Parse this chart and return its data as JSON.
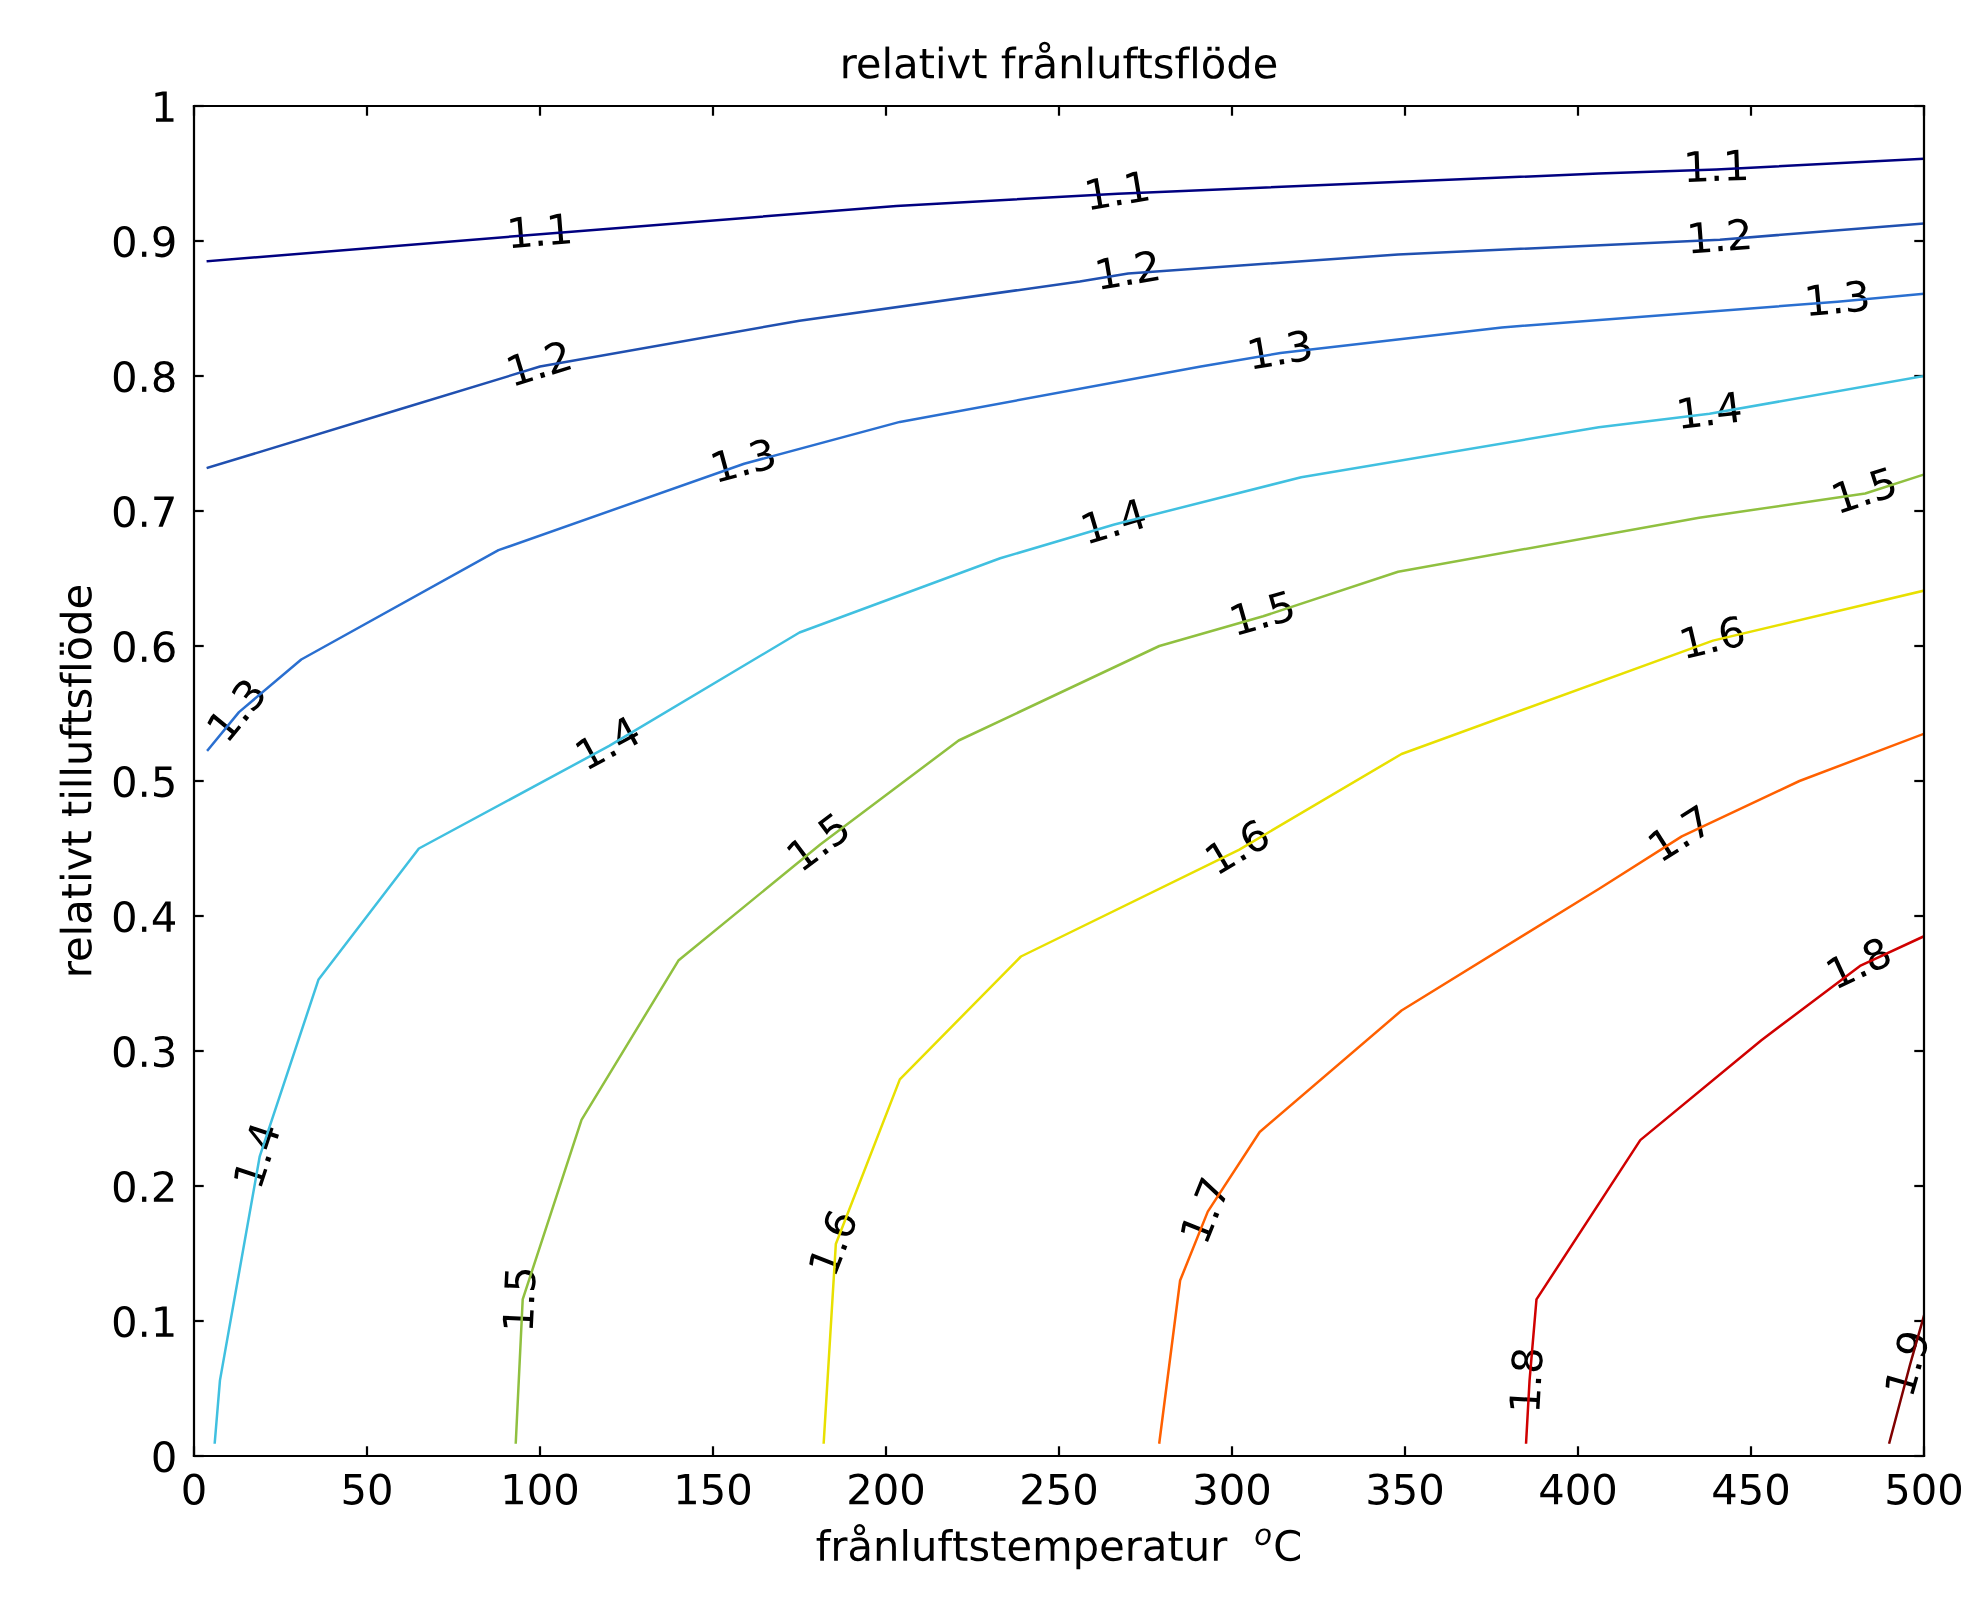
{
  "chart_data": {
    "type": "line",
    "title": "relativt frånluftsflöde",
    "xlabel": "frånluftstemperatur  $^{o}$C",
    "ylabel": "relativt tilluftsflöde",
    "xlim": [
      0,
      500
    ],
    "xticks": [
      0,
      50,
      100,
      150,
      200,
      250,
      300,
      350,
      400,
      450,
      500
    ],
    "ylim": [
      0,
      1
    ],
    "yticks": [
      0,
      0.1,
      0.2,
      0.3,
      0.4,
      0.5,
      0.6,
      0.7,
      0.8,
      0.9,
      1
    ],
    "grid": false,
    "legend": false,
    "marker": "none",
    "line_style": "solid",
    "series": [
      {
        "color": "#000080",
        "x": [
          4,
          100,
          203,
          267,
          406,
          440,
          500
        ],
        "values": [
          0.885,
          0.905,
          0.926,
          0.935,
          0.95,
          0.953,
          0.961
        ]
      },
      {
        "color": "#2050b0",
        "x": [
          4,
          59,
          100,
          175,
          256,
          270,
          348,
          441,
          500
        ],
        "values": [
          0.732,
          0.775,
          0.807,
          0.841,
          0.87,
          0.876,
          0.89,
          0.901,
          0.913
        ]
      },
      {
        "color": "#2a6fd0",
        "x": [
          4,
          13,
          31,
          88,
          159,
          204,
          291,
          314,
          378,
          475,
          500
        ],
        "values": [
          0.523,
          0.551,
          0.59,
          0.671,
          0.735,
          0.766,
          0.807,
          0.817,
          0.836,
          0.855,
          0.861
        ]
      },
      {
        "color": "#40c0e0",
        "x": [
          6,
          7.5,
          19,
          36,
          65,
          120,
          175,
          233,
          266,
          320,
          406,
          438,
          500
        ],
        "values": [
          0.01,
          0.056,
          0.222,
          0.353,
          0.45,
          0.526,
          0.61,
          0.665,
          0.69,
          0.725,
          0.762,
          0.772,
          0.8
        ]
      },
      {
        "color": "#90c040",
        "x": [
          93,
          95,
          112,
          140,
          181,
          221,
          279,
          309,
          348,
          435,
          483,
          500
        ],
        "values": [
          0.01,
          0.116,
          0.249,
          0.367,
          0.453,
          0.53,
          0.6,
          0.622,
          0.655,
          0.695,
          0.713,
          0.727
        ]
      },
      {
        "color": "#e8e000",
        "x": [
          182,
          185.5,
          204,
          239,
          302,
          349,
          439,
          500
        ],
        "values": [
          0.01,
          0.157,
          0.279,
          0.37,
          0.449,
          0.52,
          0.604,
          0.641
        ]
      },
      {
        "color": "#ff6000",
        "x": [
          279,
          285,
          293,
          308,
          349,
          406,
          430,
          464,
          500
        ],
        "values": [
          0.01,
          0.13,
          0.181,
          0.24,
          0.33,
          0.42,
          0.459,
          0.5,
          0.535
        ]
      },
      {
        "color": "#d00000",
        "x": [
          385,
          386,
          388,
          418,
          453,
          481.5,
          500
        ],
        "values": [
          0.01,
          0.056,
          0.116,
          0.234,
          0.308,
          0.363,
          0.385
        ]
      },
      {
        "color": "#800000",
        "x": [
          490,
          496,
          500
        ],
        "values": [
          0.01,
          0.068,
          0.104
        ]
      }
    ],
    "annotations": [
      {
        "text": "1.1",
        "x": 100,
        "y": 0.905
      },
      {
        "text": "1.1",
        "x": 267,
        "y": 0.935
      },
      {
        "text": "1.1",
        "x": 440,
        "y": 0.953
      },
      {
        "text": "1.2",
        "x": 100,
        "y": 0.807
      },
      {
        "text": "1.2",
        "x": 270,
        "y": 0.876
      },
      {
        "text": "1.2",
        "x": 441,
        "y": 0.901
      },
      {
        "text": "1.3",
        "x": 13,
        "y": 0.551
      },
      {
        "text": "1.3",
        "x": 159,
        "y": 0.735
      },
      {
        "text": "1.3",
        "x": 314,
        "y": 0.817
      },
      {
        "text": "1.3",
        "x": 475,
        "y": 0.855
      },
      {
        "text": "1.4",
        "x": 19,
        "y": 0.222
      },
      {
        "text": "1.4",
        "x": 120,
        "y": 0.526
      },
      {
        "text": "1.4",
        "x": 266,
        "y": 0.69
      },
      {
        "text": "1.4",
        "x": 438,
        "y": 0.772
      },
      {
        "text": "1.5",
        "x": 95,
        "y": 0.116
      },
      {
        "text": "1.5",
        "x": 181,
        "y": 0.453
      },
      {
        "text": "1.5",
        "x": 309,
        "y": 0.622
      },
      {
        "text": "1.5",
        "x": 483,
        "y": 0.713
      },
      {
        "text": "1.6",
        "x": 185.5,
        "y": 0.157
      },
      {
        "text": "1.6",
        "x": 302,
        "y": 0.449
      },
      {
        "text": "1.6",
        "x": 439,
        "y": 0.604
      },
      {
        "text": "1.7",
        "x": 293,
        "y": 0.181
      },
      {
        "text": "1.7",
        "x": 430,
        "y": 0.459
      },
      {
        "text": "1.8",
        "x": 386,
        "y": 0.056
      },
      {
        "text": "1.8",
        "x": 481.5,
        "y": 0.363
      },
      {
        "text": "1.9",
        "x": 496,
        "y": 0.068
      }
    ]
  }
}
